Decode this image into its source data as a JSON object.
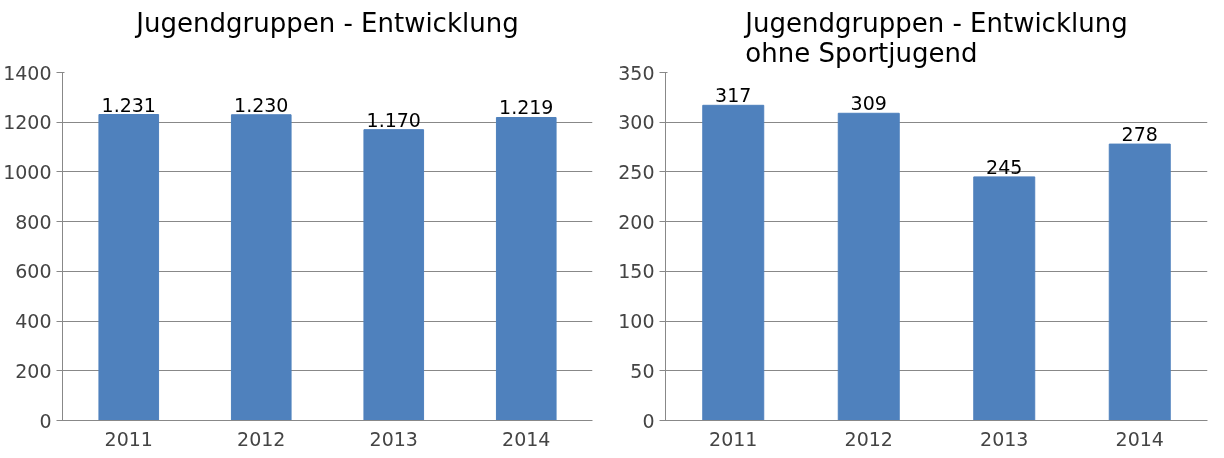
{
  "chart_data": [
    {
      "type": "bar",
      "title": "Jugendgruppen - Entwicklung",
      "categories": [
        "2011",
        "2012",
        "2013",
        "2014"
      ],
      "values": [
        1231,
        1230,
        1170,
        1219
      ],
      "value_labels": [
        "1.231",
        "1.230",
        "1.170",
        "1.219"
      ],
      "color": "#4f81bd",
      "ylim": [
        0,
        1400
      ],
      "yticks": [
        0,
        200,
        400,
        600,
        800,
        1000,
        1200,
        1400
      ],
      "grid": "y"
    },
    {
      "type": "bar",
      "title": "Jugendgruppen - Entwicklung\nohne Sportjugend",
      "categories": [
        "2011",
        "2012",
        "2013",
        "2014"
      ],
      "values": [
        317,
        309,
        245,
        278
      ],
      "data_labels": true,
      "color": "#4f81bd",
      "ylim": [
        0,
        350
      ],
      "yticks": [
        0,
        50,
        100,
        150,
        200,
        250,
        300,
        350
      ],
      "grid": "y"
    }
  ]
}
